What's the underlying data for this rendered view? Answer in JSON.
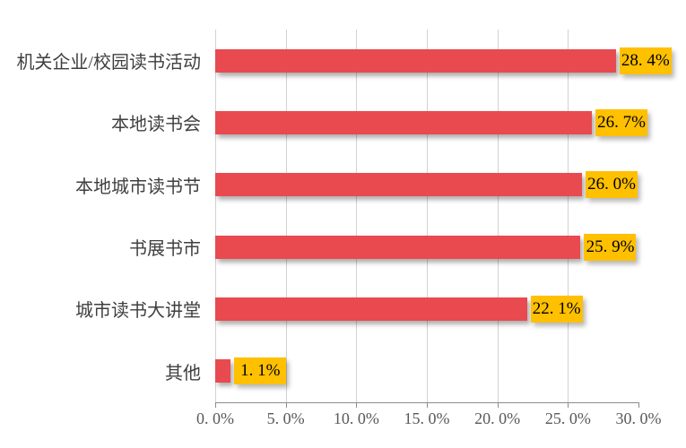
{
  "chart": {
    "background_color": "#ffffff",
    "bar_color": "#e84a50",
    "value_box_color": "#ffc000",
    "value_text_color": "#000000",
    "category_text_color": "#3f3f3f",
    "axis_text_color": "#595959",
    "gridline_color": "#d2d2d2",
    "axis_line_color": "#8c8c8c",
    "categories": [
      {
        "label": "机关企业/校园读书活动",
        "value": 28.4,
        "display": "28. 4%"
      },
      {
        "label": "本地读书会",
        "value": 26.7,
        "display": "26. 7%"
      },
      {
        "label": "本地城市读书节",
        "value": 26.0,
        "display": "26. 0%"
      },
      {
        "label": "书展书市",
        "value": 25.9,
        "display": "25. 9%"
      },
      {
        "label": "城市读书大讲堂",
        "value": 22.1,
        "display": "22. 1%"
      },
      {
        "label": "其他",
        "value": 1.1,
        "display": "1. 1%"
      }
    ],
    "x_axis": {
      "min": 0,
      "max": 30,
      "step": 5,
      "tick_labels": [
        "0. 0%",
        "5. 0%",
        "10. 0%",
        "15. 0%",
        "20. 0%",
        "25. 0%",
        "30. 0%"
      ]
    }
  },
  "chart_data": {
    "type": "bar",
    "orientation": "horizontal",
    "title": "",
    "xlabel": "",
    "ylabel": "",
    "categories": [
      "机关企业/校园读书活动",
      "本地读书会",
      "本地城市读书节",
      "书展书市",
      "城市读书大讲堂",
      "其他"
    ],
    "values": [
      28.4,
      26.7,
      26.0,
      25.9,
      22.1,
      1.1
    ],
    "value_suffix": "%",
    "xlim": [
      0,
      30
    ],
    "x_tick_step": 5,
    "grid": "vertical-only-up-to-25",
    "legend": "none",
    "data_labels": "outside-end, gold boxes"
  }
}
